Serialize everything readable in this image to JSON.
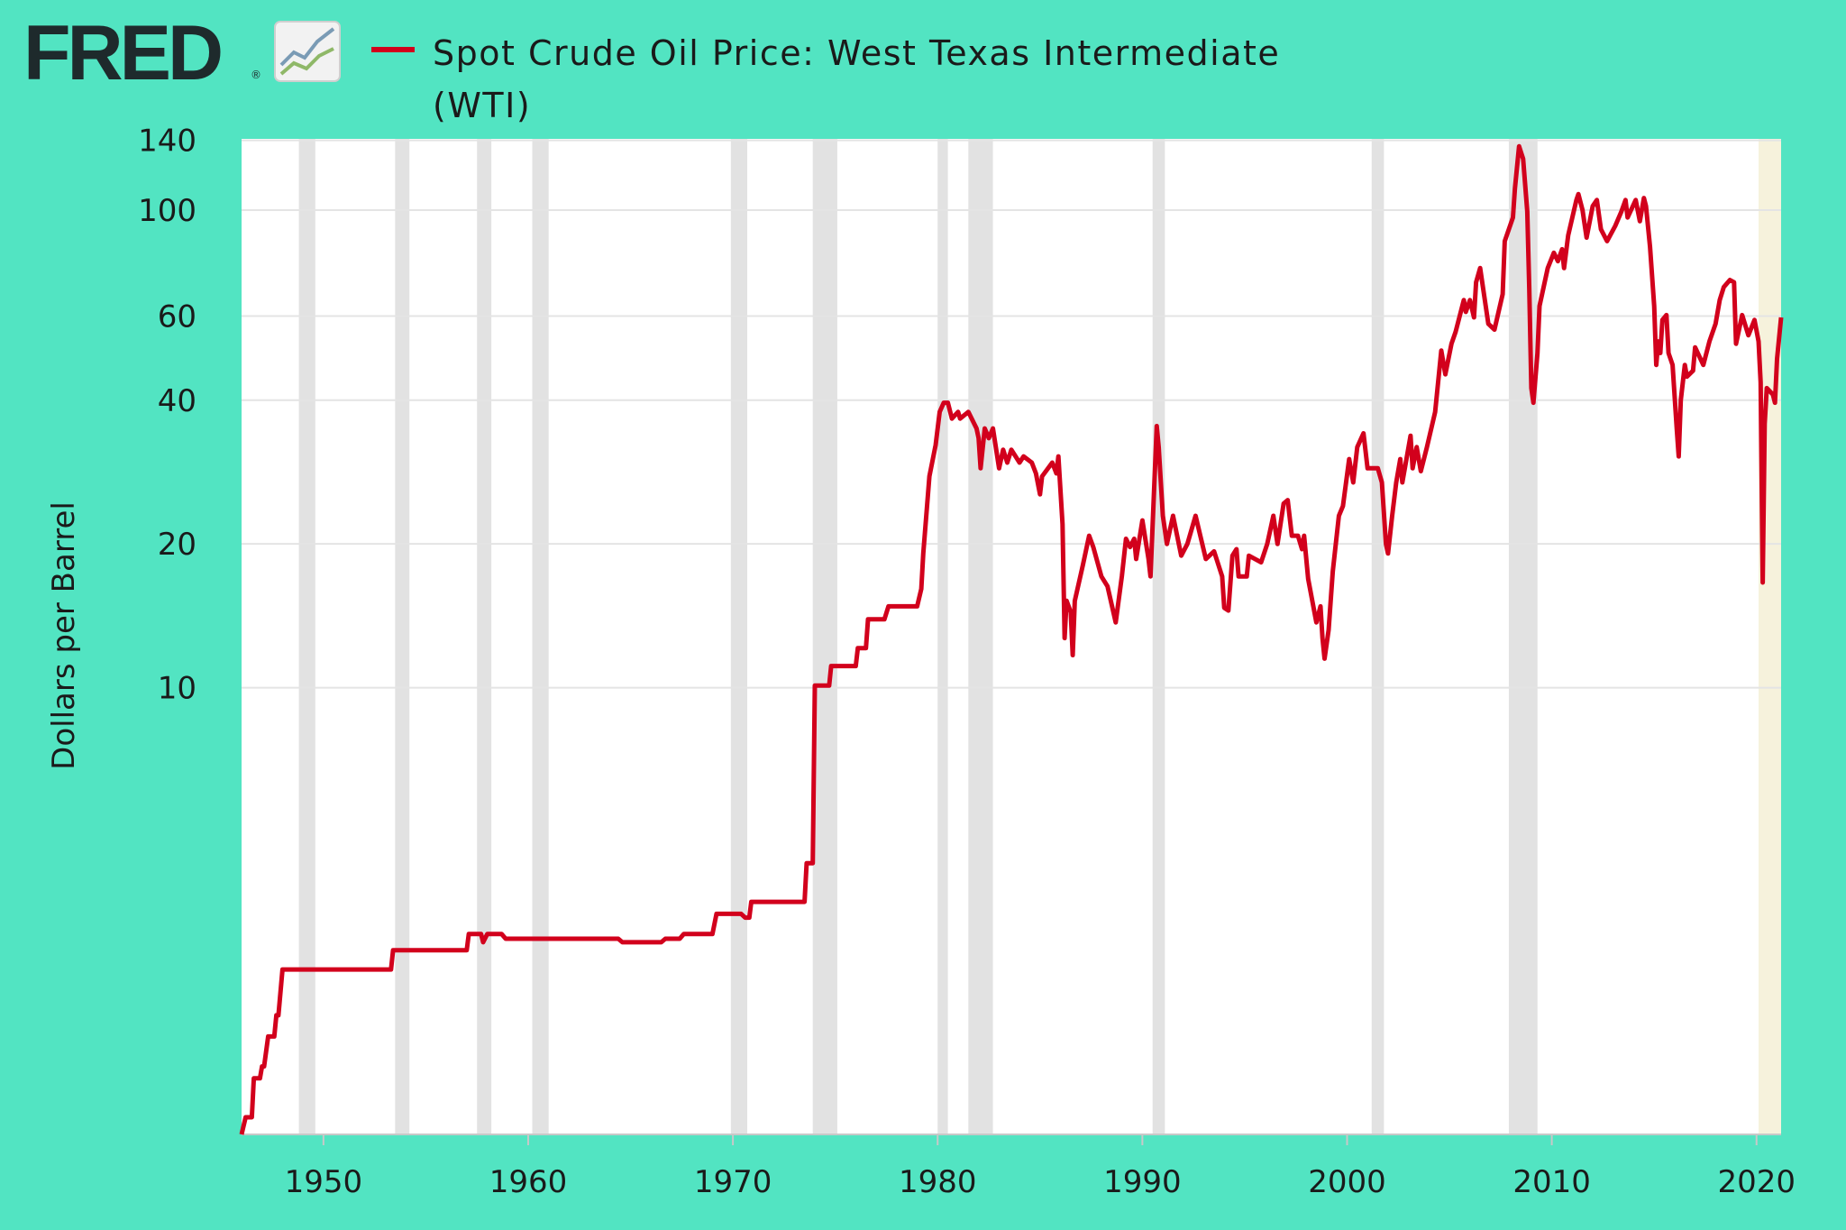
{
  "header": {
    "brand": "FRED",
    "brand_mark": "®"
  },
  "chart_data": {
    "type": "line",
    "y_label": "Dollars per Barrel",
    "yscale": "log",
    "grid": true,
    "xlim": [
      1946.0,
      2021.2
    ],
    "xticks": [
      1950,
      1960,
      1970,
      1980,
      1990,
      2000,
      2010,
      2020
    ],
    "ylim": [
      1.16,
      141
    ],
    "yticks": [
      10,
      20,
      40,
      60,
      100,
      140
    ],
    "shading": [
      {
        "start": 1948.8,
        "end": 1949.6,
        "color": "#e2e2e2"
      },
      {
        "start": 1953.5,
        "end": 1954.2,
        "color": "#e2e2e2"
      },
      {
        "start": 1957.5,
        "end": 1958.2,
        "color": "#e2e2e2"
      },
      {
        "start": 1960.2,
        "end": 1961.0,
        "color": "#e2e2e2"
      },
      {
        "start": 1969.9,
        "end": 1970.7,
        "color": "#e2e2e2"
      },
      {
        "start": 1973.9,
        "end": 1975.1,
        "color": "#e2e2e2"
      },
      {
        "start": 1980.0,
        "end": 1980.5,
        "color": "#e2e2e2"
      },
      {
        "start": 1981.5,
        "end": 1982.7,
        "color": "#e2e2e2"
      },
      {
        "start": 1990.5,
        "end": 1991.1,
        "color": "#e2e2e2"
      },
      {
        "start": 2001.2,
        "end": 2001.8,
        "color": "#e2e2e2"
      },
      {
        "start": 2007.9,
        "end": 2009.3,
        "color": "#e2e2e2"
      },
      {
        "start": 2020.1,
        "end": 2021.2,
        "color": "#f6f2dc"
      }
    ],
    "x": [
      1946.0,
      1946.2,
      1946.5,
      1946.6,
      1946.9,
      1947.0,
      1947.1,
      1947.3,
      1947.6,
      1947.7,
      1947.8,
      1948.0,
      1953.3,
      1953.4,
      1957.0,
      1957.1,
      1957.7,
      1957.8,
      1958.0,
      1958.7,
      1958.9,
      1964.4,
      1964.6,
      1966.5,
      1966.7,
      1967.4,
      1967.6,
      1969.0,
      1969.2,
      1970.4,
      1970.6,
      1970.8,
      1970.9,
      1973.5,
      1973.6,
      1973.9,
      1974.0,
      1974.7,
      1974.8,
      1976.0,
      1976.1,
      1976.5,
      1976.6,
      1977.4,
      1977.6,
      1979.0,
      1979.2,
      1979.3,
      1979.6,
      1979.9,
      1980.1,
      1980.3,
      1980.5,
      1980.7,
      1981.0,
      1981.1,
      1981.5,
      1981.9,
      1982.0,
      1982.1,
      1982.3,
      1982.5,
      1982.7,
      1983.0,
      1983.2,
      1983.4,
      1983.6,
      1984.0,
      1984.2,
      1984.6,
      1984.8,
      1985.0,
      1985.1,
      1985.6,
      1985.8,
      1985.9,
      1986.1,
      1986.2,
      1986.3,
      1986.5,
      1986.6,
      1986.7,
      1987.1,
      1987.4,
      1987.6,
      1988.0,
      1988.3,
      1988.7,
      1989.0,
      1989.2,
      1989.4,
      1989.6,
      1989.7,
      1990.0,
      1990.3,
      1990.4,
      1990.7,
      1990.8,
      1991.0,
      1991.2,
      1991.5,
      1991.9,
      1992.2,
      1992.6,
      1993.1,
      1993.5,
      1993.9,
      1994.0,
      1994.2,
      1994.4,
      1994.6,
      1994.7,
      1995.1,
      1995.2,
      1995.8,
      1996.1,
      1996.4,
      1996.6,
      1996.9,
      1997.1,
      1997.3,
      1997.6,
      1997.8,
      1997.9,
      1998.1,
      1998.5,
      1998.7,
      1998.8,
      1998.9,
      1999.1,
      1999.3,
      1999.6,
      1999.8,
      2000.1,
      2000.3,
      2000.5,
      2000.8,
      2001.0,
      2001.5,
      2001.7,
      2001.9,
      2002.0,
      2002.2,
      2002.4,
      2002.6,
      2002.7,
      2003.1,
      2003.2,
      2003.4,
      2003.6,
      2003.9,
      2004.3,
      2004.6,
      2004.8,
      2005.1,
      2005.3,
      2005.7,
      2005.8,
      2006.0,
      2006.2,
      2006.3,
      2006.5,
      2006.9,
      2007.2,
      2007.6,
      2007.7,
      2008.1,
      2008.2,
      2008.4,
      2008.6,
      2008.8,
      2008.9,
      2009.0,
      2009.1,
      2009.3,
      2009.4,
      2009.8,
      2010.1,
      2010.3,
      2010.5,
      2010.6,
      2010.8,
      2011.2,
      2011.3,
      2011.5,
      2011.7,
      2012.0,
      2012.2,
      2012.4,
      2012.7,
      2013.1,
      2013.4,
      2013.6,
      2013.7,
      2014.1,
      2014.3,
      2014.5,
      2014.6,
      2014.8,
      2015.0,
      2015.1,
      2015.2,
      2015.3,
      2015.4,
      2015.6,
      2015.7,
      2015.9,
      2016.1,
      2016.2,
      2016.3,
      2016.5,
      2016.6,
      2016.9,
      2017.0,
      2017.4,
      2017.7,
      2018.0,
      2018.2,
      2018.4,
      2018.7,
      2018.9,
      2019.0,
      2019.3,
      2019.6,
      2019.9,
      2020.1,
      2020.2,
      2020.3,
      2020.4,
      2020.5,
      2020.8,
      2020.9,
      2021.0,
      2021.2
    ],
    "series": [
      {
        "name": "Spot Crude Oil Price: West Texas Intermediate (WTI)",
        "color": "#d2001c",
        "values": [
          1.16,
          1.26,
          1.26,
          1.52,
          1.52,
          1.61,
          1.61,
          1.86,
          1.86,
          2.06,
          2.06,
          2.57,
          2.57,
          2.82,
          2.82,
          3.05,
          3.05,
          2.93,
          3.05,
          3.05,
          2.98,
          2.98,
          2.93,
          2.93,
          2.98,
          2.98,
          3.05,
          3.05,
          3.36,
          3.36,
          3.3,
          3.3,
          3.56,
          3.56,
          4.29,
          4.29,
          10.1,
          10.1,
          11.1,
          11.1,
          12.1,
          12.1,
          13.9,
          13.9,
          14.8,
          14.8,
          16.1,
          19.1,
          27.7,
          32.2,
          37.8,
          39.5,
          39.5,
          36.6,
          37.8,
          36.6,
          37.8,
          34.9,
          33.3,
          28.8,
          34.9,
          33.3,
          34.9,
          28.8,
          31.5,
          29.6,
          31.5,
          29.6,
          30.5,
          29.6,
          28.1,
          25.4,
          27.7,
          29.6,
          28.1,
          30.5,
          22.0,
          12.7,
          15.2,
          14.4,
          11.7,
          15.2,
          18.1,
          20.8,
          19.7,
          17.1,
          16.3,
          13.7,
          17.1,
          20.5,
          19.7,
          20.5,
          18.6,
          22.4,
          18.6,
          17.1,
          35.3,
          31.9,
          22.9,
          20.0,
          22.9,
          18.9,
          20.0,
          22.9,
          18.6,
          19.3,
          17.1,
          14.7,
          14.5,
          18.9,
          19.5,
          17.1,
          17.1,
          18.9,
          18.3,
          20.0,
          22.9,
          20.0,
          24.3,
          24.7,
          20.8,
          20.8,
          19.5,
          20.8,
          16.9,
          13.7,
          14.8,
          12.7,
          11.5,
          13.2,
          17.5,
          22.9,
          24.0,
          30.1,
          26.9,
          31.9,
          34.1,
          28.8,
          28.8,
          26.9,
          20.0,
          19.1,
          22.9,
          26.9,
          30.1,
          26.9,
          33.7,
          28.8,
          31.9,
          28.4,
          31.9,
          37.8,
          50.8,
          45.3,
          52.5,
          55.6,
          64.8,
          61.2,
          64.8,
          59.6,
          70.6,
          75.6,
          57.8,
          56.2,
          66.7,
          86.1,
          96.5,
          111,
          136,
          128,
          99.3,
          68.6,
          42.4,
          39.5,
          50.2,
          63.0,
          75.6,
          81.4,
          78.2,
          82.8,
          75.6,
          88.6,
          105,
          108,
          100,
          87.6,
          102,
          105,
          91.2,
          86.1,
          92.7,
          99.3,
          105,
          96.5,
          105,
          94.8,
          106,
          102,
          83.7,
          63.0,
          47.4,
          53.1,
          50.2,
          58.9,
          60.3,
          50.2,
          47.4,
          34.9,
          30.5,
          40.0,
          47.4,
          44.8,
          46.1,
          51.6,
          47.4,
          53.1,
          57.8,
          64.8,
          69.0,
          71.4,
          70.6,
          52.5,
          60.3,
          54.7,
          58.9,
          53.1,
          43.6,
          16.6,
          35.7,
          42.4,
          41.1,
          39.5,
          48.8,
          59.6
        ]
      }
    ]
  }
}
